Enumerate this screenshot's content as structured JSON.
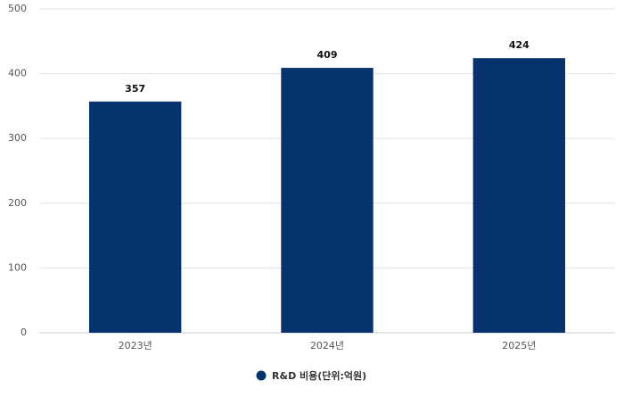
{
  "chart_data": {
    "type": "bar",
    "categories": [
      "2023년",
      "2024년",
      "2025년"
    ],
    "series": [
      {
        "name": "R&D 비용(단위:억원)",
        "color": "#06336d",
        "values": [
          357,
          409,
          424
        ]
      }
    ],
    "ylim": [
      0,
      500
    ],
    "yticks": [
      0,
      100,
      200,
      300,
      400,
      500
    ],
    "grid": true,
    "legend": "bottom"
  }
}
